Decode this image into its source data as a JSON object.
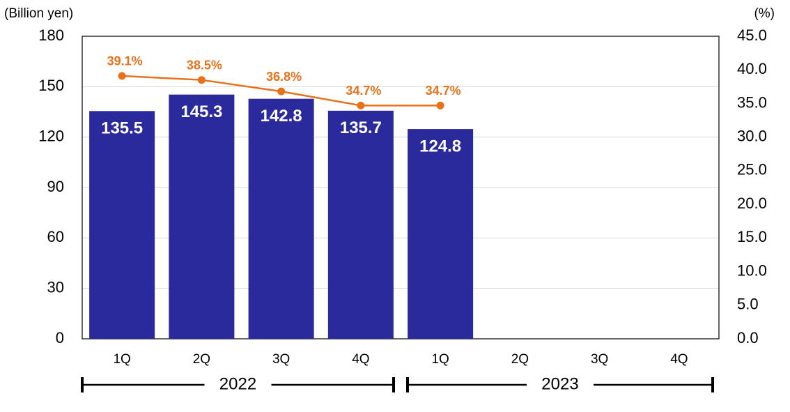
{
  "chart_data": {
    "type": "bar_line",
    "y_label": "(Billion yen)",
    "y2_label": "(%)",
    "categories": [
      "1Q",
      "2Q",
      "3Q",
      "4Q",
      "1Q",
      "2Q",
      "3Q",
      "4Q"
    ],
    "groups": [
      "2022",
      "2023"
    ],
    "series": [
      {
        "type": "bar",
        "color": "#2b2a9c",
        "values": [
          135.5,
          145.3,
          142.8,
          135.7,
          124.8,
          null,
          null,
          null
        ]
      },
      {
        "type": "line",
        "axis": "y2",
        "color": "#e8711a",
        "values": [
          39.1,
          38.5,
          36.8,
          34.7,
          34.7,
          null,
          null,
          null
        ],
        "value_labels": [
          "39.1%",
          "38.5%",
          "36.8%",
          "34.7%",
          "34.7%",
          null,
          null,
          null
        ]
      }
    ],
    "ylim": [
      0,
      180
    ],
    "yticks": [
      0,
      30,
      60,
      90,
      120,
      150,
      180
    ],
    "y2lim": [
      0,
      45
    ],
    "y2ticks": [
      {
        "value": 0,
        "label": "0.0"
      },
      {
        "value": 5,
        "label": "5.0"
      },
      {
        "value": 10,
        "label": "10.0"
      },
      {
        "value": 15,
        "label": "15.0"
      },
      {
        "value": 20,
        "label": "20.0"
      },
      {
        "value": 25,
        "label": "25.0"
      },
      {
        "value": 30,
        "label": "30.0"
      },
      {
        "value": 35,
        "label": "35.0"
      },
      {
        "value": 40,
        "label": "40.0"
      },
      {
        "value": 45,
        "label": "45.0"
      }
    ],
    "grid": true
  }
}
